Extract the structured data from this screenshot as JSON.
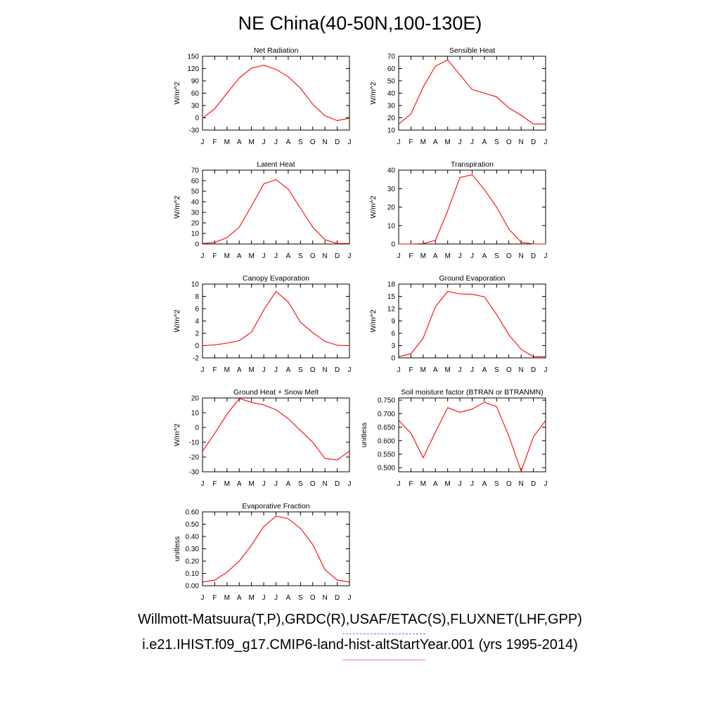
{
  "title": "NE China(40-50N,100-130E)",
  "legend": {
    "observations": "Willmott-Matsuura(T,P),GRDC(R),USAF/ETAC(S),FLUXNET(LHF,GPP)",
    "model": "i.e21.IHIST.f09_g17.CMIP6-land-hist-altStartYear.001 (yrs 1995-2014)",
    "observations_color": "#6f6fff",
    "model_color": "#ff0000"
  },
  "chart_data": [
    {
      "type": "line",
      "title": "Net Radiation",
      "ylabel": "W/m^2",
      "x": [
        "J",
        "F",
        "M",
        "A",
        "M",
        "J",
        "J",
        "A",
        "S",
        "O",
        "N",
        "D",
        "J"
      ],
      "ylim": [
        -30,
        150
      ],
      "yticks": [
        "-30",
        "0",
        "30",
        "60",
        "90",
        "120",
        "150"
      ],
      "series": [
        {
          "color": "#ff0000",
          "values": [
            -1,
            22,
            60,
            97,
            121,
            128,
            118,
            100,
            72,
            33,
            5,
            -7,
            -1
          ]
        }
      ]
    },
    {
      "type": "line",
      "title": "Sensible Heat",
      "ylabel": "W/m^2",
      "x": [
        "J",
        "F",
        "M",
        "A",
        "M",
        "J",
        "J",
        "A",
        "S",
        "O",
        "N",
        "D",
        "J"
      ],
      "ylim": [
        10,
        70
      ],
      "yticks": [
        "10",
        "20",
        "30",
        "40",
        "50",
        "60",
        "70"
      ],
      "series": [
        {
          "color": "#ff0000",
          "values": [
            15,
            23,
            45,
            62,
            67,
            55,
            43,
            40,
            37,
            28,
            22,
            15,
            15
          ]
        }
      ]
    },
    {
      "type": "line",
      "title": "Latent Heat",
      "ylabel": "W/m^2",
      "x": [
        "J",
        "F",
        "M",
        "A",
        "M",
        "J",
        "J",
        "A",
        "S",
        "O",
        "N",
        "D",
        "J"
      ],
      "ylim": [
        0,
        70
      ],
      "yticks": [
        "0",
        "10",
        "20",
        "30",
        "40",
        "50",
        "60",
        "70"
      ],
      "series": [
        {
          "color": "#ff0000",
          "values": [
            0.5,
            1.5,
            6,
            16,
            36,
            57,
            61,
            52,
            34,
            16,
            4,
            0.5,
            0.5
          ]
        }
      ]
    },
    {
      "type": "line",
      "title": "Transpiration",
      "ylabel": "W/m^2",
      "x": [
        "J",
        "F",
        "M",
        "A",
        "M",
        "J",
        "J",
        "A",
        "S",
        "O",
        "N",
        "D",
        "J"
      ],
      "ylim": [
        0,
        40
      ],
      "yticks": [
        "0",
        "10",
        "20",
        "30",
        "40"
      ],
      "series": [
        {
          "color": "#ff0000",
          "values": [
            0,
            0,
            0.2,
            2,
            18,
            36,
            37.5,
            29.5,
            20,
            8,
            1,
            0,
            0
          ]
        }
      ]
    },
    {
      "type": "line",
      "title": "Canopy Evaporation",
      "ylabel": "W/m^2",
      "x": [
        "J",
        "F",
        "M",
        "A",
        "M",
        "J",
        "J",
        "A",
        "S",
        "O",
        "N",
        "D",
        "J"
      ],
      "ylim": [
        -2,
        10
      ],
      "yticks": [
        "-2",
        "0",
        "2",
        "4",
        "6",
        "8",
        "10"
      ],
      "series": [
        {
          "color": "#ff0000",
          "values": [
            0,
            0.1,
            0.4,
            0.8,
            2.2,
            5.8,
            8.8,
            7.1,
            3.8,
            2.1,
            0.7,
            0.05,
            0
          ]
        }
      ]
    },
    {
      "type": "line",
      "title": "Ground Evaporation",
      "ylabel": "W/m^2",
      "x": [
        "J",
        "F",
        "M",
        "A",
        "M",
        "J",
        "J",
        "A",
        "S",
        "O",
        "N",
        "D",
        "J"
      ],
      "ylim": [
        0,
        18
      ],
      "yticks": [
        "0",
        "3",
        "6",
        "9",
        "12",
        "15",
        "18"
      ],
      "series": [
        {
          "color": "#ff0000",
          "values": [
            0.3,
            1,
            4.8,
            12.5,
            16.2,
            15.6,
            15.5,
            14.9,
            10.6,
            5.6,
            2.1,
            0.3,
            0.3
          ]
        }
      ]
    },
    {
      "type": "line",
      "title": "Ground Heat + Snow Melt",
      "ylabel": "W/m^2",
      "x": [
        "J",
        "F",
        "M",
        "A",
        "M",
        "J",
        "J",
        "A",
        "S",
        "O",
        "N",
        "D",
        "J"
      ],
      "ylim": [
        -30,
        20
      ],
      "yticks": [
        "-30",
        "-20",
        "-10",
        "0",
        "10",
        "20"
      ],
      "series": [
        {
          "color": "#ff0000",
          "values": [
            -16,
            -4,
            9,
            19.7,
            17,
            15.3,
            12,
            6,
            -2,
            -10,
            -21,
            -22,
            -16
          ]
        }
      ]
    },
    {
      "type": "line",
      "title": "Soil moisture factor (BTRAN or BTRANMN)",
      "ylabel": "unitless",
      "x": [
        "J",
        "F",
        "M",
        "A",
        "M",
        "J",
        "J",
        "A",
        "S",
        "O",
        "N",
        "D",
        "J"
      ],
      "ylim": [
        0.485,
        0.758
      ],
      "yticks": [
        "0.500",
        "0.550",
        "0.600",
        "0.650",
        "0.700",
        "0.750"
      ],
      "series": [
        {
          "color": "#ff0000",
          "values": [
            0.675,
            0.628,
            0.537,
            0.632,
            0.722,
            0.705,
            0.717,
            0.742,
            0.726,
            0.616,
            0.487,
            0.614,
            0.675
          ]
        }
      ]
    },
    {
      "type": "line",
      "title": "Evaporative Fraction",
      "ylabel": "unitless",
      "x": [
        "J",
        "F",
        "M",
        "A",
        "M",
        "J",
        "J",
        "A",
        "S",
        "O",
        "N",
        "D",
        "J"
      ],
      "ylim": [
        0.0,
        0.6
      ],
      "yticks": [
        "0.00",
        "0.10",
        "0.20",
        "0.30",
        "0.40",
        "0.50",
        "0.60"
      ],
      "series": [
        {
          "color": "#ff0000",
          "values": [
            0.03,
            0.045,
            0.11,
            0.2,
            0.33,
            0.48,
            0.565,
            0.545,
            0.465,
            0.335,
            0.13,
            0.045,
            0.03
          ]
        }
      ]
    }
  ]
}
